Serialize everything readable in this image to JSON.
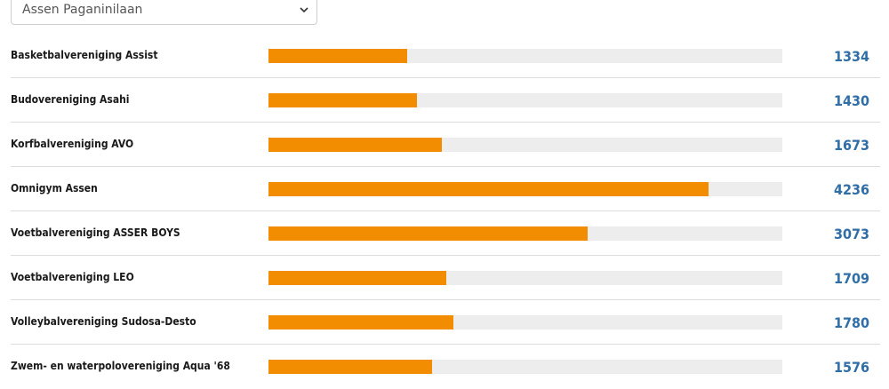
{
  "filter": {
    "selected": "Assen Paganinilaan"
  },
  "chart_data": {
    "type": "bar",
    "orientation": "horizontal",
    "bar_color": "#f28c00",
    "track_color": "#ededed",
    "value_color": "#2f6ea6",
    "xlim": [
      0,
      4950
    ],
    "categories": [
      "Basketbalvereniging Assist",
      "Budovereniging Asahi",
      "Korfbalvereniging AVO",
      "Omnigym Assen",
      "Voetbalvereniging ASSER BOYS",
      "Voetbalvereniging LEO",
      "Volleybalvereniging Sudosa-Desto",
      "Zwem- en waterpolovereniging Aqua '68"
    ],
    "values": [
      1334,
      1430,
      1673,
      4236,
      3073,
      1709,
      1780,
      1576
    ],
    "value_labels": [
      "1334",
      "1430",
      "1673",
      "4236",
      "3073",
      "1709",
      "1780",
      "1576"
    ]
  }
}
